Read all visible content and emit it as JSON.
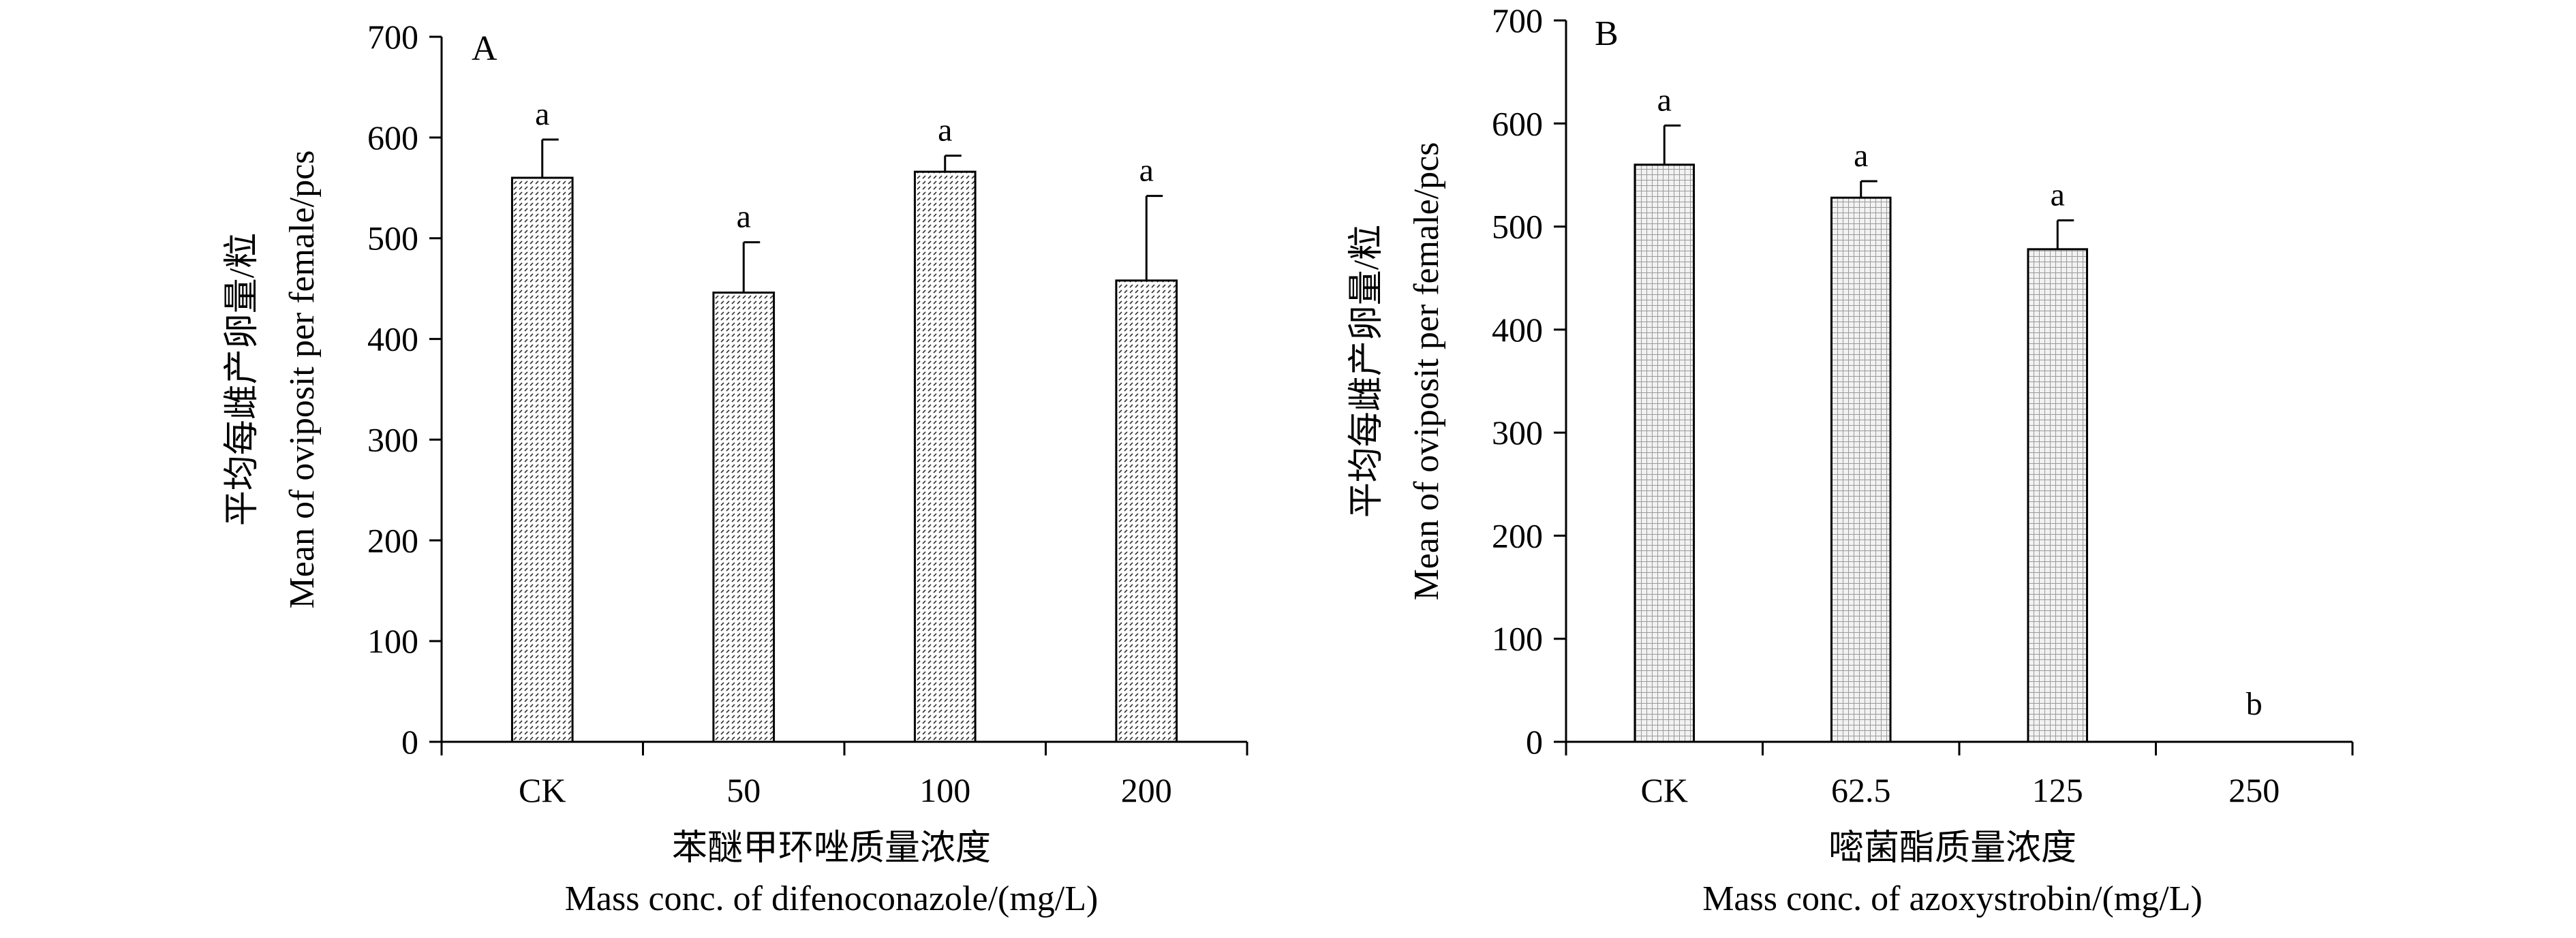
{
  "chart_data": [
    {
      "type": "bar",
      "panel_label": "A",
      "categories": [
        "CK",
        "50",
        "100",
        "200"
      ],
      "values": [
        560,
        446,
        566,
        458
      ],
      "errors": [
        38,
        50,
        16,
        84
      ],
      "significance": [
        "a",
        "a",
        "a",
        "a"
      ],
      "ylabel_cn": "平均每雌产卵量/粒",
      "ylabel_en": "Mean of oviposit per female/pcs",
      "xlabel_cn": "苯醚甲环唑质量浓度",
      "xlabel_en": "Mass conc. of difenoconazole/(mg/L)",
      "ylim": [
        0,
        700
      ],
      "yticks": [
        0,
        100,
        200,
        300,
        400,
        500,
        600,
        700
      ],
      "bar_pattern": "diagonal-hatch",
      "grid": false,
      "legend": "none"
    },
    {
      "type": "bar",
      "panel_label": "B",
      "categories": [
        "CK",
        "62.5",
        "125",
        "250"
      ],
      "values": [
        560,
        528,
        478,
        0
      ],
      "errors": [
        38,
        16,
        28,
        0
      ],
      "significance": [
        "a",
        "a",
        "a",
        "b"
      ],
      "ylabel_cn": "平均每雌产卵量/粒",
      "ylabel_en": "Mean of oviposit per female/pcs",
      "xlabel_cn": "嘧菌酯质量浓度",
      "xlabel_en": "Mass conc. of azoxystrobin/(mg/L)",
      "ylim": [
        0,
        700
      ],
      "yticks": [
        0,
        100,
        200,
        300,
        400,
        500,
        600,
        700
      ],
      "bar_pattern": "dot-grid",
      "grid": false,
      "legend": "none"
    }
  ]
}
